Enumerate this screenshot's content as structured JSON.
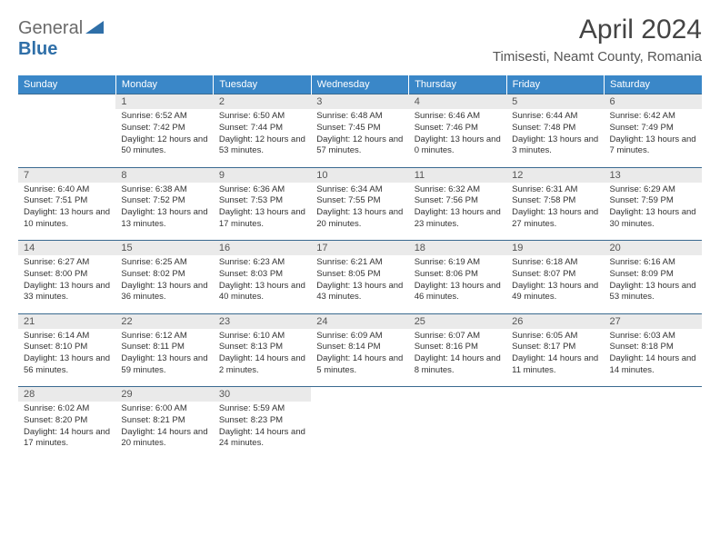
{
  "logo": {
    "part1": "General",
    "part2": "Blue"
  },
  "title": "April 2024",
  "location": "Timisesti, Neamt County, Romania",
  "colors": {
    "header_bg": "#3a87c8",
    "header_text": "#ffffff",
    "daynum_bg": "#eaeaea",
    "rule": "#3a6a90",
    "logo_gray": "#6a6a6a",
    "logo_blue": "#2f6fa8"
  },
  "weekdays": [
    "Sunday",
    "Monday",
    "Tuesday",
    "Wednesday",
    "Thursday",
    "Friday",
    "Saturday"
  ],
  "weeks": [
    {
      "days": [
        "",
        "1",
        "2",
        "3",
        "4",
        "5",
        "6"
      ],
      "details": [
        "",
        "Sunrise: 6:52 AM\nSunset: 7:42 PM\nDaylight: 12 hours and 50 minutes.",
        "Sunrise: 6:50 AM\nSunset: 7:44 PM\nDaylight: 12 hours and 53 minutes.",
        "Sunrise: 6:48 AM\nSunset: 7:45 PM\nDaylight: 12 hours and 57 minutes.",
        "Sunrise: 6:46 AM\nSunset: 7:46 PM\nDaylight: 13 hours and 0 minutes.",
        "Sunrise: 6:44 AM\nSunset: 7:48 PM\nDaylight: 13 hours and 3 minutes.",
        "Sunrise: 6:42 AM\nSunset: 7:49 PM\nDaylight: 13 hours and 7 minutes."
      ]
    },
    {
      "days": [
        "7",
        "8",
        "9",
        "10",
        "11",
        "12",
        "13"
      ],
      "details": [
        "Sunrise: 6:40 AM\nSunset: 7:51 PM\nDaylight: 13 hours and 10 minutes.",
        "Sunrise: 6:38 AM\nSunset: 7:52 PM\nDaylight: 13 hours and 13 minutes.",
        "Sunrise: 6:36 AM\nSunset: 7:53 PM\nDaylight: 13 hours and 17 minutes.",
        "Sunrise: 6:34 AM\nSunset: 7:55 PM\nDaylight: 13 hours and 20 minutes.",
        "Sunrise: 6:32 AM\nSunset: 7:56 PM\nDaylight: 13 hours and 23 minutes.",
        "Sunrise: 6:31 AM\nSunset: 7:58 PM\nDaylight: 13 hours and 27 minutes.",
        "Sunrise: 6:29 AM\nSunset: 7:59 PM\nDaylight: 13 hours and 30 minutes."
      ]
    },
    {
      "days": [
        "14",
        "15",
        "16",
        "17",
        "18",
        "19",
        "20"
      ],
      "details": [
        "Sunrise: 6:27 AM\nSunset: 8:00 PM\nDaylight: 13 hours and 33 minutes.",
        "Sunrise: 6:25 AM\nSunset: 8:02 PM\nDaylight: 13 hours and 36 minutes.",
        "Sunrise: 6:23 AM\nSunset: 8:03 PM\nDaylight: 13 hours and 40 minutes.",
        "Sunrise: 6:21 AM\nSunset: 8:05 PM\nDaylight: 13 hours and 43 minutes.",
        "Sunrise: 6:19 AM\nSunset: 8:06 PM\nDaylight: 13 hours and 46 minutes.",
        "Sunrise: 6:18 AM\nSunset: 8:07 PM\nDaylight: 13 hours and 49 minutes.",
        "Sunrise: 6:16 AM\nSunset: 8:09 PM\nDaylight: 13 hours and 53 minutes."
      ]
    },
    {
      "days": [
        "21",
        "22",
        "23",
        "24",
        "25",
        "26",
        "27"
      ],
      "details": [
        "Sunrise: 6:14 AM\nSunset: 8:10 PM\nDaylight: 13 hours and 56 minutes.",
        "Sunrise: 6:12 AM\nSunset: 8:11 PM\nDaylight: 13 hours and 59 minutes.",
        "Sunrise: 6:10 AM\nSunset: 8:13 PM\nDaylight: 14 hours and 2 minutes.",
        "Sunrise: 6:09 AM\nSunset: 8:14 PM\nDaylight: 14 hours and 5 minutes.",
        "Sunrise: 6:07 AM\nSunset: 8:16 PM\nDaylight: 14 hours and 8 minutes.",
        "Sunrise: 6:05 AM\nSunset: 8:17 PM\nDaylight: 14 hours and 11 minutes.",
        "Sunrise: 6:03 AM\nSunset: 8:18 PM\nDaylight: 14 hours and 14 minutes."
      ]
    },
    {
      "days": [
        "28",
        "29",
        "30",
        "",
        "",
        "",
        ""
      ],
      "details": [
        "Sunrise: 6:02 AM\nSunset: 8:20 PM\nDaylight: 14 hours and 17 minutes.",
        "Sunrise: 6:00 AM\nSunset: 8:21 PM\nDaylight: 14 hours and 20 minutes.",
        "Sunrise: 5:59 AM\nSunset: 8:23 PM\nDaylight: 14 hours and 24 minutes.",
        "",
        "",
        "",
        ""
      ]
    }
  ]
}
